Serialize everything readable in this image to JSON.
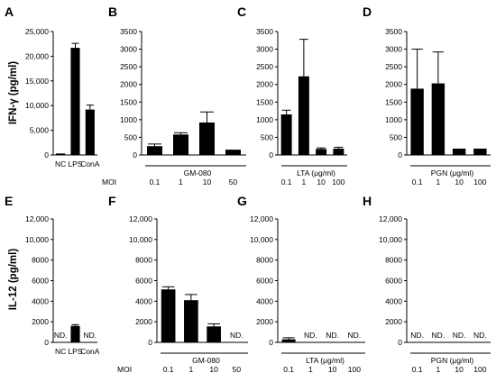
{
  "chart_data": [
    {
      "id": "A",
      "letter": "A",
      "type": "bar",
      "ylabel": "IFN-γ (pg/ml)",
      "ylim": [
        0,
        25000
      ],
      "yticks": [
        "0",
        "5,000",
        "10,000",
        "15,000",
        "20,000",
        "25,000"
      ],
      "categories": [
        "NC",
        "LPS",
        "ConA"
      ],
      "values": [
        300,
        21700,
        9200
      ],
      "errors": [
        0,
        900,
        900
      ],
      "nd": [
        false,
        false,
        false
      ],
      "group_label": "",
      "moi_label": "",
      "moi_values": []
    },
    {
      "id": "B",
      "letter": "B",
      "type": "bar",
      "ylabel": "",
      "ylim": [
        0,
        3500
      ],
      "yticks": [
        "0",
        "500",
        "1000",
        "1500",
        "2000",
        "2500",
        "3000",
        "3500"
      ],
      "categories": [
        "0.1",
        "1",
        "10",
        "50"
      ],
      "values": [
        250,
        580,
        920,
        150
      ],
      "errors": [
        60,
        50,
        300,
        0
      ],
      "nd": [
        false,
        false,
        false,
        false
      ],
      "group_label": "GM-080",
      "moi_label": "MOI",
      "moi_values": [
        "0.1",
        "1",
        "10",
        "50"
      ]
    },
    {
      "id": "C",
      "letter": "C",
      "type": "bar",
      "ylabel": "",
      "ylim": [
        0,
        3500
      ],
      "yticks": [
        "0",
        "500",
        "1000",
        "1500",
        "2000",
        "2500",
        "3000",
        "3500"
      ],
      "categories": [
        "0.1",
        "1",
        "10",
        "100"
      ],
      "values": [
        1150,
        2230,
        170,
        180
      ],
      "errors": [
        120,
        1050,
        30,
        40
      ],
      "nd": [
        false,
        false,
        false,
        false
      ],
      "group_label": "LTA (μg/ml)",
      "moi_label": "",
      "moi_values": [
        "0.1",
        "1",
        "10",
        "100"
      ]
    },
    {
      "id": "D",
      "letter": "D",
      "type": "bar",
      "ylabel": "",
      "ylim": [
        0,
        3500
      ],
      "yticks": [
        "0",
        "500",
        "1000",
        "1500",
        "2000",
        "2500",
        "3000",
        "3500"
      ],
      "categories": [
        "0.1",
        "1",
        "10",
        "100"
      ],
      "values": [
        1880,
        2030,
        180,
        180
      ],
      "errors": [
        1120,
        890,
        0,
        0
      ],
      "nd": [
        false,
        false,
        false,
        false
      ],
      "group_label": "PGN (μg/ml)",
      "moi_label": "",
      "moi_values": [
        "0.1",
        "1",
        "10",
        "100"
      ]
    },
    {
      "id": "E",
      "letter": "E",
      "type": "bar",
      "ylabel": "IL-12 (pg/ml)",
      "ylim": [
        0,
        12000
      ],
      "yticks": [
        "0",
        "2000",
        "4000",
        "6000",
        "8000",
        "10,000",
        "12,000"
      ],
      "categories": [
        "NC",
        "LPS",
        "ConA"
      ],
      "values": [
        0,
        1600,
        0
      ],
      "errors": [
        0,
        120,
        0
      ],
      "nd": [
        true,
        false,
        true
      ],
      "nd_text": "ND.",
      "group_label": "",
      "moi_label": "",
      "moi_values": []
    },
    {
      "id": "F",
      "letter": "F",
      "type": "bar",
      "ylabel": "",
      "ylim": [
        0,
        12000
      ],
      "yticks": [
        "0",
        "2000",
        "4000",
        "6000",
        "8000",
        "10,000",
        "12,000"
      ],
      "categories": [
        "0.1",
        "1",
        "10",
        "50"
      ],
      "values": [
        5150,
        4100,
        1550,
        0
      ],
      "errors": [
        250,
        550,
        250,
        0
      ],
      "nd": [
        false,
        false,
        false,
        true
      ],
      "nd_text": "ND.",
      "group_label": "GM-080",
      "moi_label": "MOI",
      "moi_values": [
        "0.1",
        "1",
        "10",
        "50"
      ]
    },
    {
      "id": "G",
      "letter": "G",
      "type": "bar",
      "ylabel": "",
      "ylim": [
        0,
        12000
      ],
      "yticks": [
        "0",
        "2000",
        "4000",
        "6000",
        "8000",
        "10,000",
        "12,000"
      ],
      "categories": [
        "0.1",
        "1",
        "10",
        "100"
      ],
      "values": [
        300,
        0,
        0,
        0
      ],
      "errors": [
        150,
        0,
        0,
        0
      ],
      "nd": [
        false,
        true,
        true,
        true
      ],
      "nd_text": "ND.",
      "group_label": "LTA (μg/ml)",
      "moi_label": "",
      "moi_values": [
        "0.1",
        "1",
        "10",
        "100"
      ]
    },
    {
      "id": "H",
      "letter": "H",
      "type": "bar",
      "ylabel": "",
      "ylim": [
        0,
        12000
      ],
      "yticks": [
        "0",
        "2000",
        "4000",
        "6000",
        "8000",
        "10,000",
        "12,000"
      ],
      "categories": [
        "0.1",
        "1",
        "10",
        "100"
      ],
      "values": [
        0,
        0,
        0,
        0
      ],
      "errors": [
        0,
        0,
        0,
        0
      ],
      "nd": [
        true,
        true,
        true,
        true
      ],
      "nd_text": "ND.",
      "group_label": "PGN (μg/ml)",
      "moi_label": "",
      "moi_values": [
        "0.1",
        "1",
        "10",
        "100"
      ]
    }
  ]
}
